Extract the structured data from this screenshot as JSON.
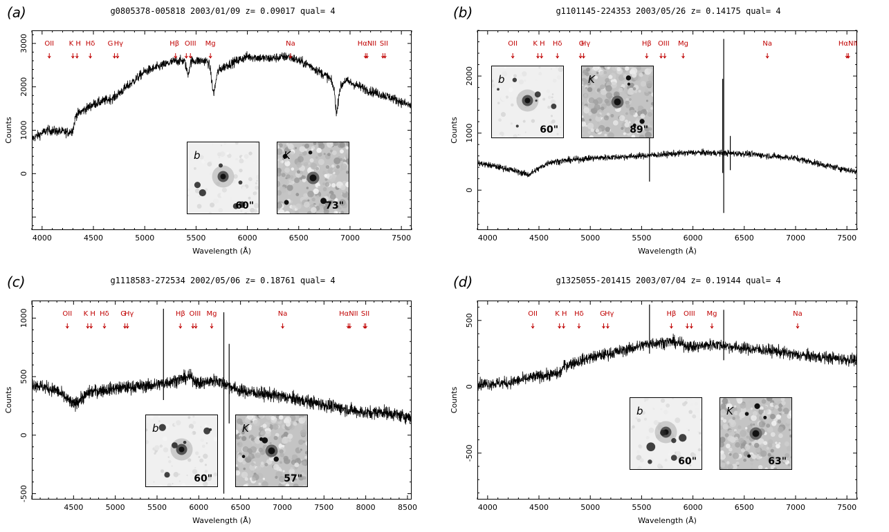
{
  "axis_label_x": "Wavelength (Å)",
  "axis_label_y": "Counts",
  "chart_data": [
    {
      "type": "line",
      "panel_label": "(a)",
      "title": "g0805378-005818 2003/01/09 z= 0.09017 qual= 4",
      "xlim": [
        3900,
        7600
      ],
      "ylim": [
        -1300,
        3300
      ],
      "x_ticks": [
        4000,
        4500,
        5000,
        5500,
        6000,
        6500,
        7000,
        7500
      ],
      "y_ticks": [
        0,
        1000,
        2000,
        3000
      ],
      "spikes": [],
      "spectrum": {
        "x": [
          3900,
          4050,
          4250,
          4300,
          4330,
          4500,
          4700,
          5000,
          5300,
          5600,
          5700,
          5800,
          6000,
          6200,
          6400,
          6600,
          6800,
          6870,
          6950,
          7200,
          7400,
          7600
        ],
        "y": [
          800,
          1000,
          950,
          1000,
          1350,
          1600,
          1750,
          2350,
          2600,
          2600,
          2350,
          2500,
          2700,
          2650,
          2700,
          2500,
          2200,
          1850,
          2150,
          1900,
          1750,
          1550
        ]
      },
      "noise": 110,
      "absorptions": [
        {
          "x": 5670,
          "depth": 550,
          "width": 25
        },
        {
          "x": 6870,
          "depth": 450,
          "width": 18
        },
        {
          "x": 5420,
          "depth": 300,
          "width": 20
        }
      ],
      "lines": [
        {
          "label": "OII",
          "x": 4070,
          "arrows": [
            4070
          ]
        },
        {
          "label": "K H",
          "x": 4320,
          "arrows": [
            4300,
            4340
          ]
        },
        {
          "label": "Hδ",
          "x": 4470,
          "arrows": [
            4470
          ]
        },
        {
          "label": "G",
          "x": 4665,
          "arrows": [
            4705
          ]
        },
        {
          "label": "Hγ",
          "x": 4745,
          "arrows": [
            4735
          ]
        },
        {
          "label": "Hβ",
          "x": 5290,
          "arrows": [
            5300
          ]
        },
        {
          "label": "OIII",
          "x": 5445,
          "arrows": [
            5405,
            5445
          ]
        },
        {
          "label": "Mg",
          "x": 5640,
          "arrows": [
            5640
          ]
        },
        {
          "label": "Na",
          "x": 6420,
          "arrows": [
            6420
          ]
        },
        {
          "label": "HαNII",
          "x": 7165,
          "arrows": [
            7150,
            7165
          ]
        },
        {
          "label": "SII",
          "x": 7330,
          "arrows": [
            7320,
            7340
          ]
        }
      ],
      "insets": [
        {
          "band": "b",
          "size": "60\"",
          "style": "b"
        },
        {
          "band": "K",
          "size": "73\"",
          "style": "k"
        }
      ]
    },
    {
      "type": "line",
      "panel_label": "(b)",
      "title": "g1101145-224353 2003/05/26 z= 0.14175 qual= 4",
      "xlim": [
        3900,
        7600
      ],
      "ylim": [
        -700,
        2800
      ],
      "x_ticks": [
        4000,
        4500,
        5000,
        5500,
        6000,
        6500,
        7000,
        7500
      ],
      "y_ticks": [
        0,
        1000,
        2000
      ],
      "spikes": [
        {
          "x": 5577,
          "lo": 150,
          "hi": 1050
        },
        {
          "x": 6300,
          "lo": -400,
          "hi": 2650
        },
        {
          "x": 6290,
          "lo": 300,
          "hi": 1950
        },
        {
          "x": 6364,
          "lo": 350,
          "hi": 950
        }
      ],
      "spectrum": {
        "x": [
          3900,
          4200,
          4400,
          4500,
          4600,
          5000,
          5500,
          6000,
          6500,
          7000,
          7300,
          7600
        ],
        "y": [
          480,
          370,
          270,
          380,
          490,
          560,
          600,
          660,
          640,
          560,
          430,
          320
        ]
      },
      "noise": 55,
      "absorptions": [],
      "lines": [
        {
          "label": "OII",
          "x": 4245,
          "arrows": [
            4245
          ]
        },
        {
          "label": "K H",
          "x": 4500,
          "arrows": [
            4490,
            4525
          ]
        },
        {
          "label": "Hδ",
          "x": 4680,
          "arrows": [
            4680
          ]
        },
        {
          "label": "G",
          "x": 4915,
          "arrows": [
            4905
          ]
        },
        {
          "label": "Hγ",
          "x": 4955,
          "arrows": [
            4935
          ]
        },
        {
          "label": "Hβ",
          "x": 5550,
          "arrows": [
            5550
          ]
        },
        {
          "label": "OIII",
          "x": 5715,
          "arrows": [
            5690,
            5725
          ]
        },
        {
          "label": "Mg",
          "x": 5905,
          "arrows": [
            5905
          ]
        },
        {
          "label": "Na",
          "x": 6725,
          "arrows": [
            6725
          ]
        },
        {
          "label": "HαNII",
          "x": 7510,
          "arrows": [
            7500,
            7515
          ]
        }
      ],
      "insets": [
        {
          "band": "b",
          "size": "60\"",
          "style": "b"
        },
        {
          "band": "K",
          "size": "89\"",
          "style": "k"
        }
      ]
    },
    {
      "type": "line",
      "panel_label": "(c)",
      "title": "g1118583-272534 2002/05/06 z= 0.18761 qual= 4",
      "xlim": [
        4000,
        8550
      ],
      "ylim": [
        -550,
        1150
      ],
      "x_ticks": [
        4500,
        5000,
        5500,
        6000,
        6500,
        7000,
        7500,
        8000,
        8500
      ],
      "y_ticks": [
        -500,
        0,
        500,
        1000
      ],
      "spikes": [
        {
          "x": 5577,
          "lo": 300,
          "hi": 1080
        },
        {
          "x": 6300,
          "lo": -500,
          "hi": 1050
        },
        {
          "x": 6364,
          "lo": 100,
          "hi": 780
        }
      ],
      "spectrum": {
        "x": [
          4000,
          4300,
          4500,
          4700,
          5000,
          5500,
          5900,
          6000,
          6200,
          6500,
          7000,
          7500,
          8000,
          8200,
          8400,
          8550
        ],
        "y": [
          440,
          380,
          260,
          370,
          400,
          430,
          500,
          440,
          470,
          380,
          330,
          260,
          190,
          200,
          170,
          150
        ]
      },
      "noise": 55,
      "absorptions": [],
      "lines": [
        {
          "label": "OII",
          "x": 4425,
          "arrows": [
            4425
          ]
        },
        {
          "label": "K H",
          "x": 4690,
          "arrows": [
            4670,
            4710
          ]
        },
        {
          "label": "Hδ",
          "x": 4870,
          "arrows": [
            4870
          ]
        },
        {
          "label": "G",
          "x": 5095,
          "arrows": [
            5115
          ]
        },
        {
          "label": "Hγ",
          "x": 5165,
          "arrows": [
            5145
          ]
        },
        {
          "label": "Hβ",
          "x": 5780,
          "arrows": [
            5780
          ]
        },
        {
          "label": "OIII",
          "x": 5955,
          "arrows": [
            5930,
            5965
          ]
        },
        {
          "label": "Mg",
          "x": 6155,
          "arrows": [
            6155
          ]
        },
        {
          "label": "Na",
          "x": 7005,
          "arrows": [
            7005
          ]
        },
        {
          "label": "HαNII",
          "x": 7795,
          "arrows": [
            7790,
            7810
          ]
        },
        {
          "label": "SII",
          "x": 7995,
          "arrows": [
            7985,
            8000
          ]
        }
      ],
      "insets": [
        {
          "band": "b",
          "size": "60\"",
          "style": "b"
        },
        {
          "band": "K",
          "size": "57\"",
          "style": "k"
        }
      ]
    },
    {
      "type": "line",
      "panel_label": "(d)",
      "title": "g1325055-201415 2003/07/04 z= 0.19144 qual= 4",
      "xlim": [
        3900,
        7600
      ],
      "ylim": [
        -850,
        650
      ],
      "x_ticks": [
        4000,
        4500,
        5000,
        5500,
        6000,
        6500,
        7000,
        7500
      ],
      "y_ticks": [
        -500,
        0,
        500
      ],
      "spikes": [
        {
          "x": 5577,
          "lo": 250,
          "hi": 620
        },
        {
          "x": 6300,
          "lo": 200,
          "hi": 580
        }
      ],
      "spectrum": {
        "x": [
          3900,
          4200,
          4500,
          4700,
          4750,
          5000,
          5300,
          5600,
          5800,
          6000,
          6200,
          6500,
          6800,
          7000,
          7300,
          7600
        ],
        "y": [
          20,
          30,
          80,
          100,
          160,
          220,
          270,
          330,
          340,
          300,
          320,
          290,
          270,
          240,
          220,
          200
        ]
      },
      "noise": 45,
      "absorptions": [],
      "lines": [
        {
          "label": "OII",
          "x": 4440,
          "arrows": [
            4440
          ]
        },
        {
          "label": "K H",
          "x": 4715,
          "arrows": [
            4700,
            4740
          ]
        },
        {
          "label": "Hδ",
          "x": 4890,
          "arrows": [
            4890
          ]
        },
        {
          "label": "G",
          "x": 5120,
          "arrows": [
            5130
          ]
        },
        {
          "label": "Hγ",
          "x": 5185,
          "arrows": [
            5170
          ]
        },
        {
          "label": "Hβ",
          "x": 5790,
          "arrows": [
            5790
          ]
        },
        {
          "label": "OIII",
          "x": 5965,
          "arrows": [
            5945,
            5985
          ]
        },
        {
          "label": "Mg",
          "x": 6185,
          "arrows": [
            6185
          ]
        },
        {
          "label": "Na",
          "x": 7020,
          "arrows": [
            7020
          ]
        }
      ],
      "insets": [
        {
          "band": "b",
          "size": "60\"",
          "style": "b"
        },
        {
          "band": "K",
          "size": "63\"",
          "style": "k"
        }
      ]
    }
  ]
}
